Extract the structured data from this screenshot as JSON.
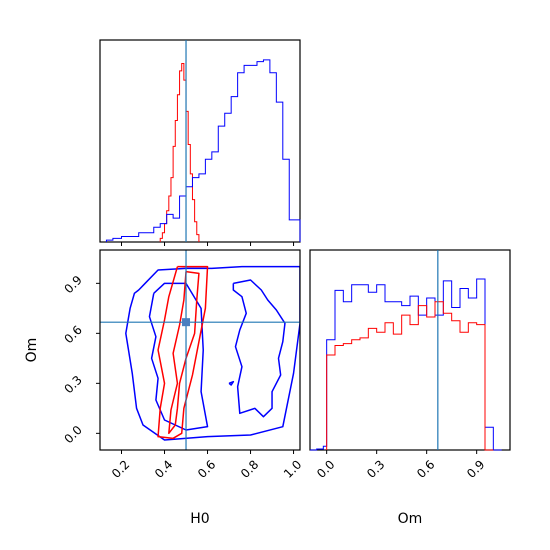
{
  "chart_data": [
    {
      "type": "histogram",
      "panel": "H0 marginal",
      "x_ticks": [
        "0.2",
        "0.4",
        "0.6",
        "0.8",
        "1.0"
      ],
      "xlim": [
        0.1,
        1.03
      ],
      "truth": 0.5,
      "series": [
        {
          "color": "#ff0000",
          "bins": [
            [
              0.38,
              0.39,
              0.02
            ],
            [
              0.39,
              0.4,
              0.05
            ],
            [
              0.4,
              0.41,
              0.1
            ],
            [
              0.41,
              0.42,
              0.17
            ],
            [
              0.42,
              0.43,
              0.25
            ],
            [
              0.43,
              0.44,
              0.35
            ],
            [
              0.44,
              0.45,
              0.52
            ],
            [
              0.45,
              0.46,
              0.66
            ],
            [
              0.46,
              0.47,
              0.8
            ],
            [
              0.47,
              0.48,
              0.93
            ],
            [
              0.48,
              0.49,
              0.97
            ],
            [
              0.49,
              0.5,
              0.88
            ],
            [
              0.5,
              0.51,
              0.71
            ],
            [
              0.51,
              0.52,
              0.53
            ],
            [
              0.52,
              0.53,
              0.37
            ],
            [
              0.53,
              0.54,
              0.23
            ],
            [
              0.54,
              0.55,
              0.11
            ],
            [
              0.55,
              0.56,
              0.04
            ]
          ]
        },
        {
          "color": "#0000ff",
          "bins": [
            [
              0.13,
              0.16,
              0.01
            ],
            [
              0.16,
              0.2,
              0.02
            ],
            [
              0.2,
              0.28,
              0.03
            ],
            [
              0.28,
              0.35,
              0.05
            ],
            [
              0.35,
              0.38,
              0.08
            ],
            [
              0.38,
              0.41,
              0.1
            ],
            [
              0.41,
              0.44,
              0.15
            ],
            [
              0.44,
              0.47,
              0.13
            ],
            [
              0.47,
              0.5,
              0.25
            ],
            [
              0.5,
              0.53,
              0.3
            ],
            [
              0.53,
              0.56,
              0.35
            ],
            [
              0.56,
              0.59,
              0.37
            ],
            [
              0.59,
              0.62,
              0.45
            ],
            [
              0.62,
              0.65,
              0.49
            ],
            [
              0.65,
              0.68,
              0.63
            ],
            [
              0.68,
              0.71,
              0.7
            ],
            [
              0.71,
              0.74,
              0.79
            ],
            [
              0.74,
              0.77,
              0.92
            ],
            [
              0.77,
              0.8,
              0.96
            ],
            [
              0.8,
              0.83,
              0.96
            ],
            [
              0.83,
              0.86,
              0.98
            ],
            [
              0.86,
              0.89,
              0.99
            ],
            [
              0.89,
              0.92,
              0.92
            ],
            [
              0.92,
              0.95,
              0.76
            ],
            [
              0.95,
              0.98,
              0.45
            ],
            [
              0.98,
              1.01,
              0.12
            ],
            [
              1.01,
              1.03,
              0.12
            ]
          ]
        }
      ]
    },
    {
      "type": "contour",
      "panel": "H0 vs Om",
      "xlabel": "H0",
      "ylabel": "Om",
      "x_ticks": [
        "0.2",
        "0.4",
        "0.6",
        "0.8",
        "1.0"
      ],
      "y_ticks": [
        "0.0",
        "0.3",
        "0.6",
        "0.9"
      ],
      "xlim": [
        0.1,
        1.03
      ],
      "ylim": [
        -0.1,
        1.1
      ],
      "truth": [
        0.5,
        0.667
      ],
      "series": [
        {
          "color": "#0000ff",
          "contours": [
            [
              [
                0.28,
                0.86
              ],
              [
                0.31,
                0.9
              ],
              [
                0.37,
                0.98
              ],
              [
                0.5,
                0.99
              ],
              [
                0.62,
                0.99
              ],
              [
                0.76,
                1.0
              ],
              [
                0.93,
                1.0
              ],
              [
                1.03,
                1.0
              ],
              [
                1.03,
                0.66
              ],
              [
                1.0,
                0.36
              ],
              [
                0.95,
                0.04
              ],
              [
                0.8,
                -0.01
              ],
              [
                0.6,
                -0.02
              ],
              [
                0.4,
                -0.04
              ],
              [
                0.3,
                0.05
              ],
              [
                0.27,
                0.15
              ],
              [
                0.25,
                0.36
              ],
              [
                0.22,
                0.6
              ],
              [
                0.24,
                0.75
              ],
              [
                0.26,
                0.84
              ],
              [
                0.28,
                0.86
              ]
            ],
            [
              [
                0.35,
                0.84
              ],
              [
                0.33,
                0.7
              ],
              [
                0.36,
                0.58
              ],
              [
                0.34,
                0.45
              ],
              [
                0.37,
                0.33
              ],
              [
                0.36,
                0.2
              ],
              [
                0.4,
                0.08
              ],
              [
                0.5,
                0.02
              ],
              [
                0.6,
                0.04
              ],
              [
                0.57,
                0.25
              ],
              [
                0.58,
                0.5
              ],
              [
                0.57,
                0.75
              ],
              [
                0.5,
                0.9
              ],
              [
                0.4,
                0.9
              ],
              [
                0.35,
                0.84
              ]
            ],
            [
              [
                0.72,
                0.9
              ],
              [
                0.8,
                0.92
              ],
              [
                0.85,
                0.86
              ],
              [
                0.88,
                0.8
              ],
              [
                0.92,
                0.74
              ],
              [
                0.96,
                0.66
              ],
              [
                0.95,
                0.55
              ],
              [
                0.93,
                0.45
              ],
              [
                0.94,
                0.35
              ],
              [
                0.9,
                0.25
              ],
              [
                0.9,
                0.15
              ],
              [
                0.86,
                0.1
              ],
              [
                0.82,
                0.15
              ],
              [
                0.75,
                0.12
              ],
              [
                0.74,
                0.28
              ],
              [
                0.76,
                0.4
              ],
              [
                0.73,
                0.52
              ],
              [
                0.75,
                0.62
              ],
              [
                0.78,
                0.72
              ],
              [
                0.76,
                0.82
              ],
              [
                0.72,
                0.86
              ],
              [
                0.72,
                0.9
              ]
            ],
            [
              [
                0.7,
                0.3
              ],
              [
                0.71,
                0.29
              ],
              [
                0.72,
                0.31
              ],
              [
                0.7,
                0.3
              ]
            ]
          ]
        },
        {
          "color": "#ff0000",
          "contours": [
            [
              [
                0.46,
                1.0
              ],
              [
                0.6,
                1.0
              ],
              [
                0.59,
                0.75
              ],
              [
                0.56,
                0.55
              ],
              [
                0.53,
                0.35
              ],
              [
                0.49,
                0.15
              ],
              [
                0.48,
                0.0
              ],
              [
                0.44,
                -0.03
              ],
              [
                0.37,
                -0.02
              ],
              [
                0.38,
                0.15
              ],
              [
                0.4,
                0.3
              ],
              [
                0.37,
                0.5
              ],
              [
                0.4,
                0.68
              ],
              [
                0.42,
                0.82
              ],
              [
                0.46,
                1.0
              ]
            ],
            [
              [
                0.5,
                0.97
              ],
              [
                0.56,
                0.96
              ],
              [
                0.55,
                0.8
              ],
              [
                0.54,
                0.6
              ],
              [
                0.5,
                0.45
              ],
              [
                0.47,
                0.3
              ],
              [
                0.46,
                0.15
              ],
              [
                0.45,
                0.05
              ],
              [
                0.42,
                0.0
              ],
              [
                0.43,
                0.14
              ],
              [
                0.46,
                0.3
              ],
              [
                0.44,
                0.48
              ],
              [
                0.47,
                0.65
              ],
              [
                0.49,
                0.8
              ],
              [
                0.5,
                0.97
              ]
            ]
          ]
        }
      ]
    },
    {
      "type": "histogram",
      "panel": "Om marginal",
      "x_ticks": [
        "0.0",
        "0.3",
        "0.6",
        "0.9"
      ],
      "xlim": [
        -0.1,
        1.1
      ],
      "truth": 0.667,
      "series": [
        {
          "color": "#0000ff",
          "bins": [
            [
              -0.1,
              -0.06,
              0.0
            ],
            [
              -0.06,
              -0.02,
              0.005
            ],
            [
              -0.02,
              0.0,
              0.02
            ],
            [
              0.0,
              0.05,
              0.58
            ],
            [
              0.05,
              0.1,
              0.84
            ],
            [
              0.1,
              0.15,
              0.78
            ],
            [
              0.15,
              0.2,
              0.87
            ],
            [
              0.2,
              0.25,
              0.87
            ],
            [
              0.25,
              0.3,
              0.83
            ],
            [
              0.3,
              0.35,
              0.87
            ],
            [
              0.35,
              0.4,
              0.78
            ],
            [
              0.4,
              0.45,
              0.78
            ],
            [
              0.45,
              0.5,
              0.76
            ],
            [
              0.5,
              0.55,
              0.81
            ],
            [
              0.55,
              0.6,
              0.71
            ],
            [
              0.6,
              0.65,
              0.8
            ],
            [
              0.65,
              0.7,
              0.71
            ],
            [
              0.7,
              0.75,
              0.89
            ],
            [
              0.75,
              0.8,
              0.75
            ],
            [
              0.8,
              0.85,
              0.85
            ],
            [
              0.85,
              0.9,
              0.8
            ],
            [
              0.9,
              0.95,
              0.9
            ],
            [
              0.95,
              1.0,
              0.12
            ],
            [
              1.0,
              1.05,
              0.0
            ]
          ]
        },
        {
          "color": "#ff0000",
          "bins": [
            [
              0.0,
              0.05,
              0.5
            ],
            [
              0.05,
              0.1,
              0.55
            ],
            [
              0.1,
              0.15,
              0.56
            ],
            [
              0.15,
              0.2,
              0.58
            ],
            [
              0.2,
              0.25,
              0.59
            ],
            [
              0.25,
              0.3,
              0.64
            ],
            [
              0.3,
              0.35,
              0.62
            ],
            [
              0.35,
              0.4,
              0.67
            ],
            [
              0.4,
              0.45,
              0.61
            ],
            [
              0.45,
              0.5,
              0.71
            ],
            [
              0.5,
              0.55,
              0.66
            ],
            [
              0.55,
              0.6,
              0.76
            ],
            [
              0.6,
              0.65,
              0.7
            ],
            [
              0.65,
              0.7,
              0.78
            ],
            [
              0.7,
              0.75,
              0.72
            ],
            [
              0.75,
              0.8,
              0.68
            ],
            [
              0.8,
              0.85,
              0.62
            ],
            [
              0.85,
              0.9,
              0.67
            ],
            [
              0.9,
              0.95,
              0.66
            ],
            [
              0.95,
              1.0,
              0.0
            ]
          ]
        }
      ]
    }
  ]
}
